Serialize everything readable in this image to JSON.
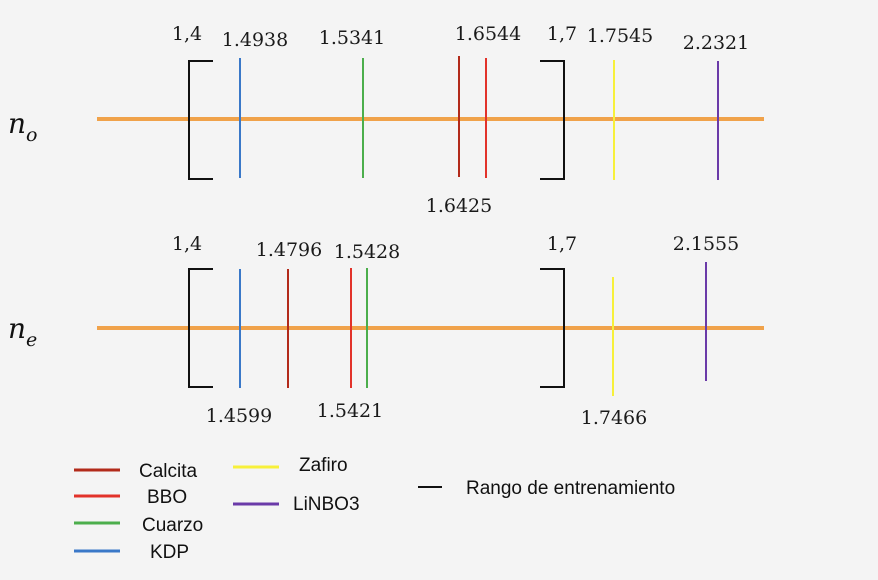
{
  "colors": {
    "axis": "#f0a24a",
    "bracket": "#111111",
    "calcita": "#b22a1a",
    "bbo": "#e2322a",
    "cuarzo": "#4cae4c",
    "kdp": "#3a78c8",
    "zafiro": "#f7f03a",
    "linbo3": "#6a3aa8"
  },
  "rows": [
    {
      "symbol": "n",
      "subscript": "o",
      "range_start": "1,4",
      "range_end": "1,7",
      "markers": [
        {
          "material": "kdp",
          "label": "1.4938"
        },
        {
          "material": "cuarzo",
          "label": "1.5341"
        },
        {
          "material": "calcita",
          "label": "1.6425"
        },
        {
          "material": "bbo",
          "label": "1.6544"
        },
        {
          "material": "zafiro",
          "label": "1.7545"
        },
        {
          "material": "linbo3",
          "label": "2.2321"
        }
      ]
    },
    {
      "symbol": "n",
      "subscript": "e",
      "range_start": "1,4",
      "range_end": "1,7",
      "markers": [
        {
          "material": "kdp",
          "label": "1.4599"
        },
        {
          "material": "calcita",
          "label": "1.4796"
        },
        {
          "material": "bbo",
          "label": "1.5421"
        },
        {
          "material": "cuarzo",
          "label": "1.5428"
        },
        {
          "material": "zafiro",
          "label": "1.7466"
        },
        {
          "material": "linbo3",
          "label": "2.1555"
        }
      ]
    }
  ],
  "legend": [
    {
      "material": "calcita",
      "label": "Calcita"
    },
    {
      "material": "bbo",
      "label": "BBO"
    },
    {
      "material": "cuarzo",
      "label": "Cuarzo"
    },
    {
      "material": "kdp",
      "label": "KDP"
    },
    {
      "material": "zafiro",
      "label": "Zafiro"
    },
    {
      "material": "linbo3",
      "label": "LiNBO3"
    },
    {
      "material": "bracket",
      "label": "Rango de entrenamiento"
    }
  ]
}
